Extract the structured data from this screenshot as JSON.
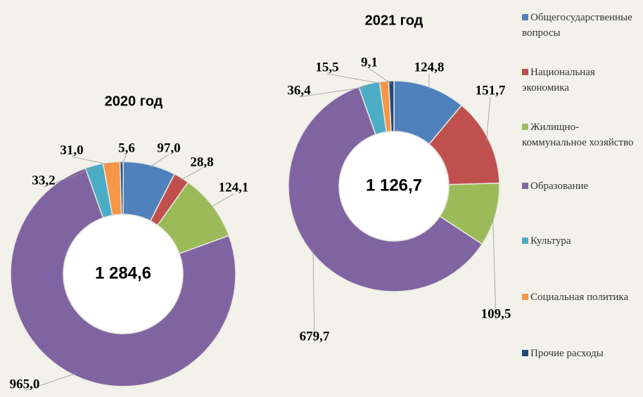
{
  "chart_data": [
    {
      "type": "pie",
      "title": "2020 год",
      "total": 1284.6,
      "total_label": "1 284,6",
      "categories": [
        "Общегосударственные вопросы",
        "Национальная экономика",
        "Жилищно-коммунальное хозяйство",
        "Образование",
        "Культура",
        "Социальная политика",
        "Прочие расходы"
      ],
      "values": [
        97.0,
        28.8,
        124.1,
        965.0,
        33.2,
        31.0,
        5.6
      ],
      "value_labels": [
        "97,0",
        "28,8",
        "124,1",
        "965,0",
        "33,2",
        "31,0",
        "5,6"
      ],
      "colors": [
        "#4f81bd",
        "#c0504d",
        "#9bbb59",
        "#8064a2",
        "#4bacc6",
        "#f79646",
        "#1f497d"
      ]
    },
    {
      "type": "pie",
      "title": "2021 год",
      "total": 1126.7,
      "total_label": "1 126,7",
      "categories": [
        "Общегосударственные вопросы",
        "Национальная экономика",
        "Жилищно-коммунальное хозяйство",
        "Образование",
        "Культура",
        "Социальная политика",
        "Прочие расходы"
      ],
      "values": [
        124.8,
        151.7,
        109.5,
        679.7,
        36.4,
        15.5,
        9.1
      ],
      "value_labels": [
        "124,8",
        "151,7",
        "109,5",
        "679,7",
        "36,4",
        "15,5",
        "9,1"
      ],
      "colors": [
        "#4f81bd",
        "#c0504d",
        "#9bbb59",
        "#8064a2",
        "#4bacc6",
        "#f79646",
        "#1f497d"
      ]
    }
  ]
}
